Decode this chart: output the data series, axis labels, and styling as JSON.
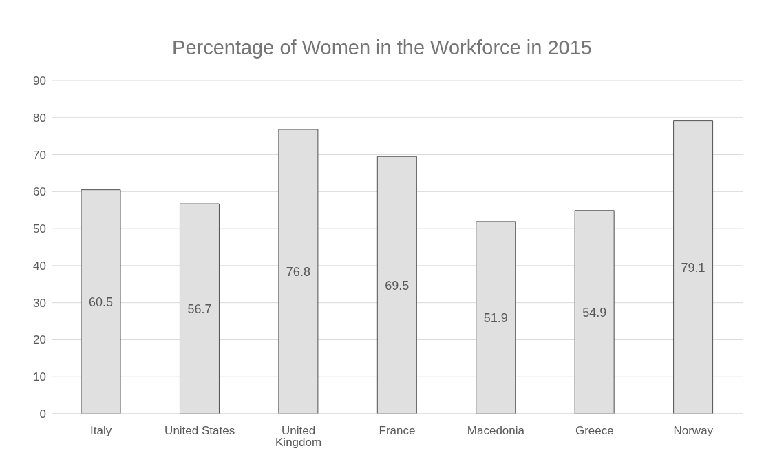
{
  "chart_data": {
    "type": "bar",
    "title": "Percentage of Women in the Workforce in 2015",
    "categories": [
      "Italy",
      "United States",
      "United Kingdom",
      "France",
      "Macedonia",
      "Greece",
      "Norway"
    ],
    "values": [
      60.5,
      56.7,
      76.8,
      69.5,
      51.9,
      54.9,
      79.1
    ],
    "color": "#e0e0e0",
    "ylim": [
      0,
      90
    ],
    "yticks": [
      0,
      10,
      20,
      30,
      40,
      50,
      60,
      70,
      80,
      90
    ],
    "grid": "y",
    "data_labels": true
  }
}
